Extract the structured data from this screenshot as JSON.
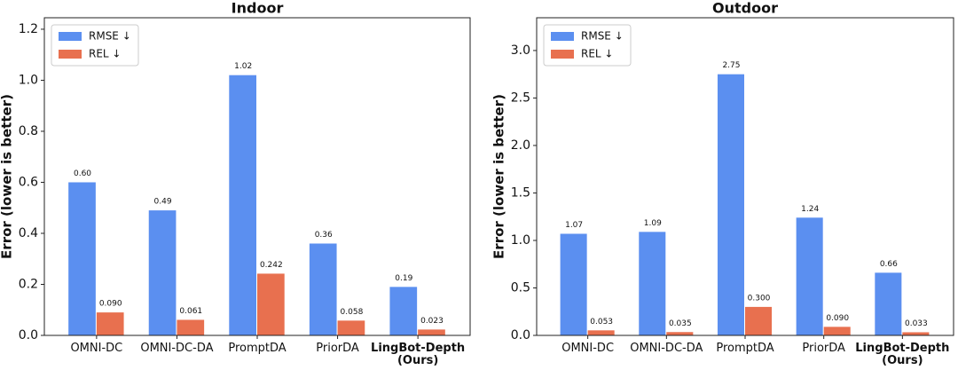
{
  "chart_data": [
    {
      "type": "bar",
      "title": "Indoor",
      "y_label": "Error (lower is better)",
      "categories": [
        "OMNI-DC",
        "OMNI-DC-DA",
        "PromptDA",
        "PriorDA",
        "LingBot-Depth\n(Ours)"
      ],
      "series": [
        {
          "name": "RMSE ↓",
          "color": "#5b8ff0",
          "values": [
            0.6,
            0.49,
            1.02,
            0.36,
            0.19
          ],
          "value_labels": [
            "0.60",
            "0.49",
            "1.02",
            "0.36",
            "0.19"
          ]
        },
        {
          "name": "REL ↓",
          "color": "#e8704f",
          "values": [
            0.09,
            0.061,
            0.242,
            0.058,
            0.023
          ],
          "value_labels": [
            "0.090",
            "0.061",
            "0.242",
            "0.058",
            "0.023"
          ]
        }
      ],
      "ylim": [
        0,
        1.245
      ],
      "yticks": [
        {
          "value": 0,
          "label": "0.0"
        },
        0.2,
        0.4,
        0.6,
        0.8,
        {
          "value": 1,
          "label": "1.0"
        },
        1.2
      ],
      "legend": "upper left"
    },
    {
      "type": "bar",
      "title": "Outdoor",
      "y_label": "Error (lower is better)",
      "categories": [
        "OMNI-DC",
        "OMNI-DC-DA",
        "PromptDA",
        "PriorDA",
        "LingBot-Depth\n(Ours)"
      ],
      "series": [
        {
          "name": "RMSE ↓",
          "color": "#5b8ff0",
          "values": [
            1.07,
            1.09,
            2.75,
            1.24,
            0.66
          ],
          "value_labels": [
            "1.07",
            "1.09",
            "2.75",
            "1.24",
            "0.66"
          ]
        },
        {
          "name": "REL ↓",
          "color": "#e8704f",
          "values": [
            0.053,
            0.035,
            0.3,
            0.09,
            0.033
          ],
          "value_labels": [
            "0.053",
            "0.035",
            "0.300",
            "0.090",
            "0.033"
          ]
        }
      ],
      "ylim": [
        0,
        3.345
      ],
      "yticks": [
        {
          "value": 0,
          "label": "0.0"
        },
        0.5,
        {
          "value": 1,
          "label": "1.0"
        },
        1.5,
        {
          "value": 2,
          "label": "2.0"
        },
        2.5,
        {
          "value": 3,
          "label": "3.0"
        }
      ],
      "legend": "upper left"
    }
  ]
}
